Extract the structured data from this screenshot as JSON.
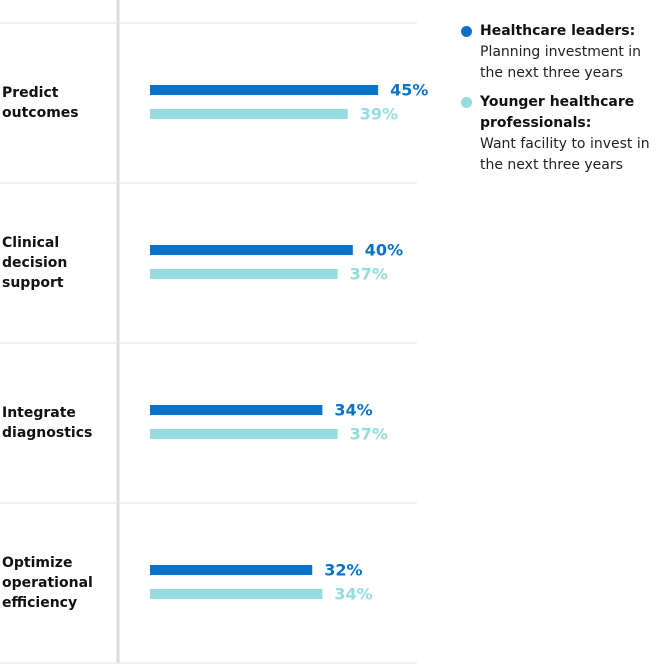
{
  "chart_data": {
    "type": "bar",
    "orientation": "horizontal",
    "categories": [
      "Predict outcomes",
      "Clinical decision support",
      "Integrate diagnostics",
      "Optimize operational efficiency"
    ],
    "series": [
      {
        "name": "Healthcare leaders:",
        "description": "Planning investment in the next three years",
        "color": "#0b72c6",
        "values": [
          45,
          40,
          34,
          32
        ],
        "value_labels": [
          "45%",
          "40%",
          "34%",
          "32%"
        ]
      },
      {
        "name": "Younger healthcare professionals:",
        "description": "Want  facility to invest in the next three years",
        "color": "#95dcdf",
        "values": [
          39,
          37,
          37,
          34
        ],
        "value_labels": [
          "39%",
          "37%",
          "37%",
          "34%"
        ]
      }
    ],
    "legend": "top-right"
  }
}
